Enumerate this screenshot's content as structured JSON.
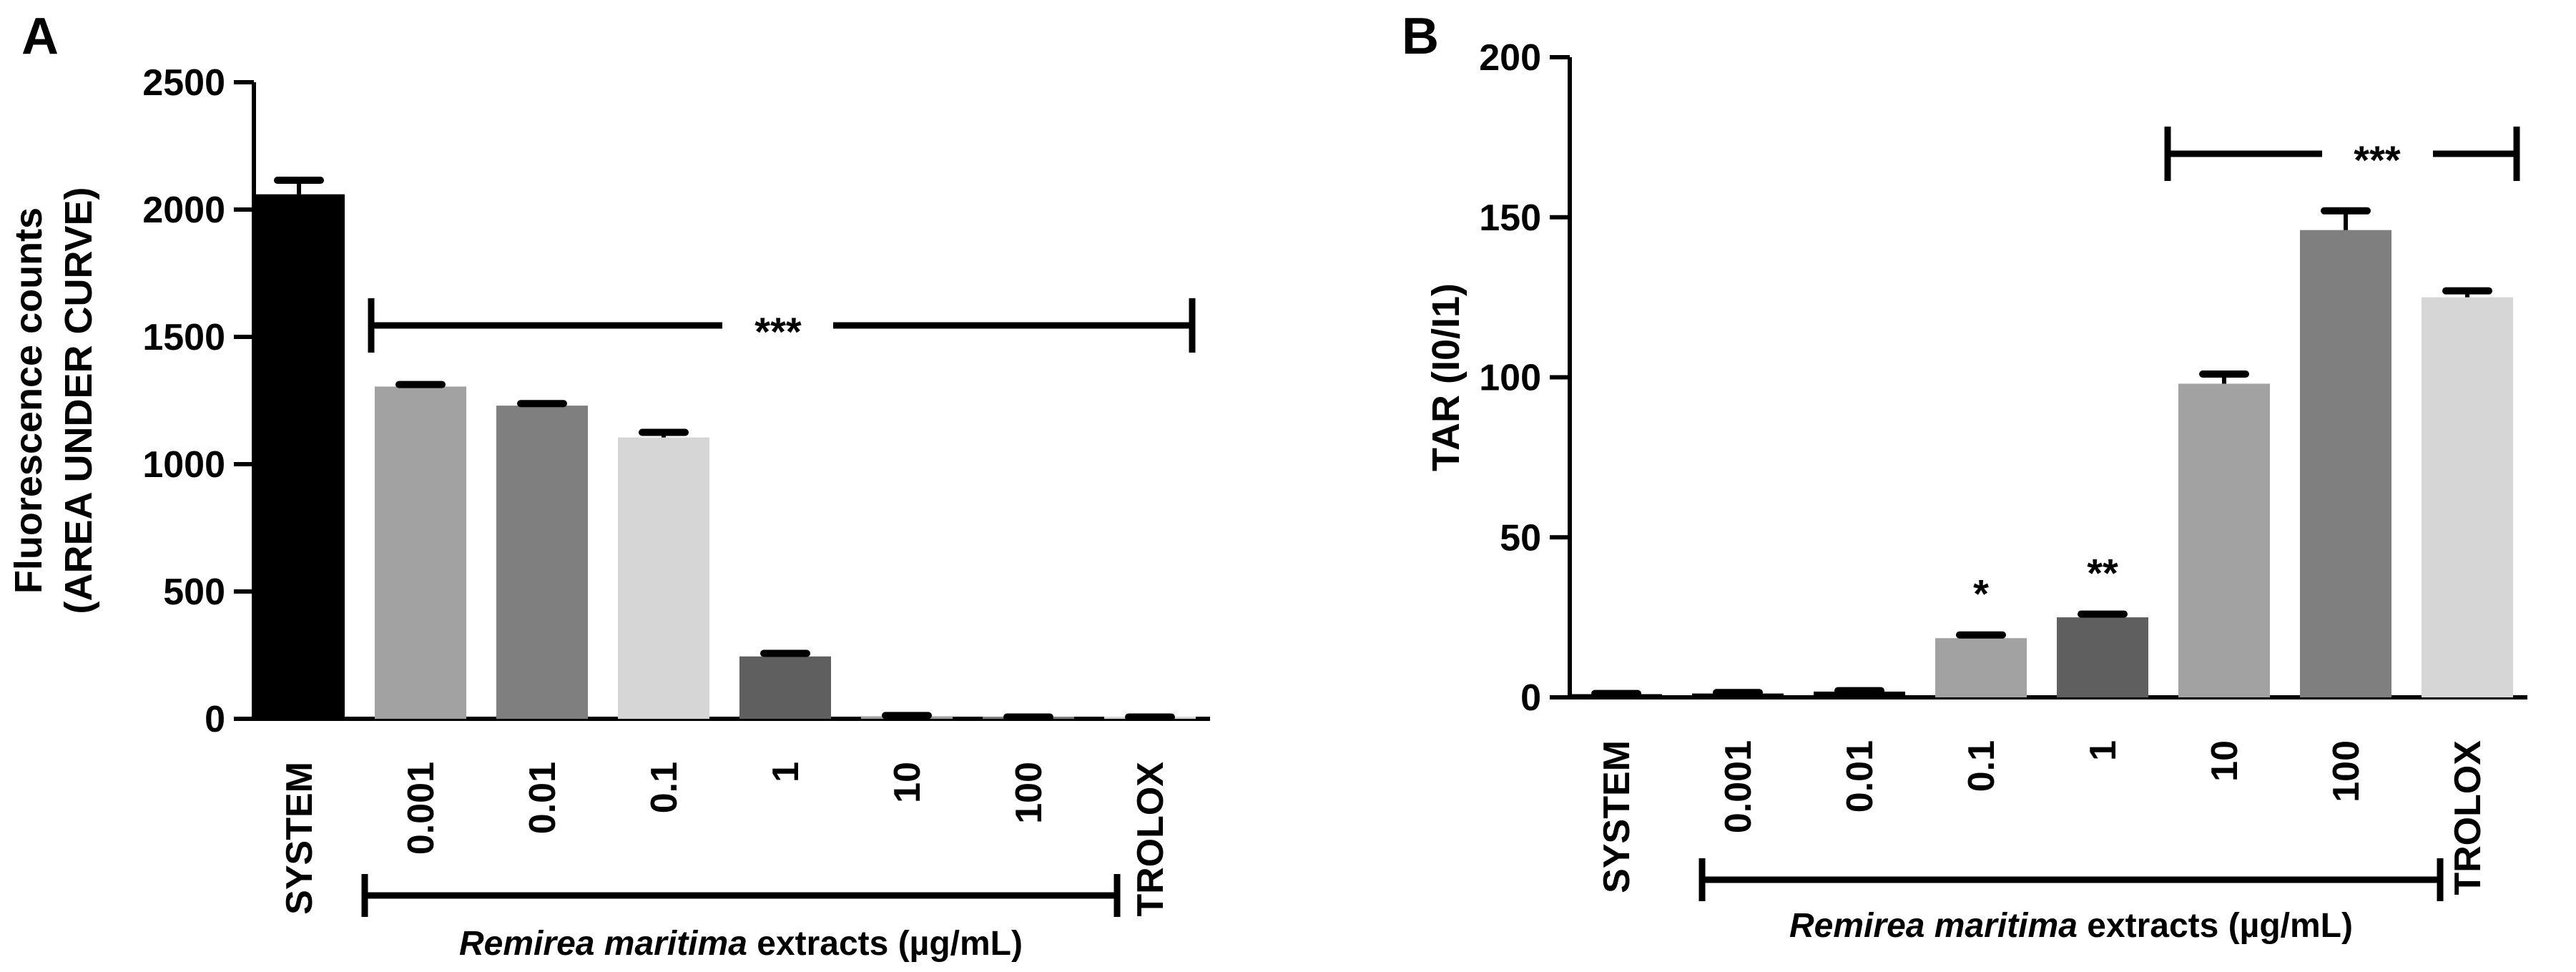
{
  "chart_data": [
    {
      "panel": "A",
      "type": "bar",
      "categories": [
        "SYSTEM",
        "0.001",
        "0.01",
        "0.1",
        "1",
        "10",
        "100",
        "TROLOX"
      ],
      "values": [
        2060,
        1305,
        1230,
        1105,
        245,
        10,
        5,
        5
      ],
      "errors": [
        55,
        8,
        8,
        20,
        12,
        3,
        2,
        2
      ],
      "bar_colors": [
        "#000000",
        "#a2a2a2",
        "#7f7f7f",
        "#d6d6d6",
        "#5f5f5f",
        "#a2a2a2",
        "#7f7f7f",
        "#d6d6d6"
      ],
      "ylabel_line1": "Fluorescence counts",
      "ylabel_line2": "(AREA UNDER CURVE)",
      "ylim": [
        0,
        2500
      ],
      "yticks": [
        0,
        500,
        1000,
        1500,
        2000,
        2500
      ],
      "significance": {
        "label": "***",
        "from_category": "0.001",
        "to_category": "TROLOX"
      },
      "group_bracket": {
        "italic": "Remirea maritima",
        "rest": " extracts (µg/mL)",
        "from_category": "0.001",
        "to_category": "100"
      }
    },
    {
      "panel": "B",
      "type": "bar",
      "categories": [
        "SYSTEM",
        "0.001",
        "0.01",
        "0.1",
        "1",
        "10",
        "100",
        "TROLOX"
      ],
      "values": [
        1,
        1.2,
        1.8,
        18.5,
        25,
        98,
        146,
        125
      ],
      "errors": [
        0.2,
        0.3,
        0.3,
        1,
        1,
        3,
        6,
        2
      ],
      "bar_colors": [
        "#000000",
        "#000000",
        "#000000",
        "#a2a2a2",
        "#5f5f5f",
        "#a2a2a2",
        "#7f7f7f",
        "#d6d6d6"
      ],
      "ylabel": "TAR (I0/I1)",
      "ylim": [
        0,
        200
      ],
      "yticks": [
        0,
        50,
        100,
        150,
        200
      ],
      "bar_annotations": [
        {
          "category": "0.1",
          "label": "*"
        },
        {
          "category": "1",
          "label": "**"
        }
      ],
      "significance": {
        "label": "***",
        "from_category": "10",
        "to_category": "TROLOX"
      },
      "group_bracket": {
        "italic": "Remirea maritima",
        "rest": " extracts (µg/mL)",
        "from_category": "0.001",
        "to_category": "100"
      }
    }
  ]
}
